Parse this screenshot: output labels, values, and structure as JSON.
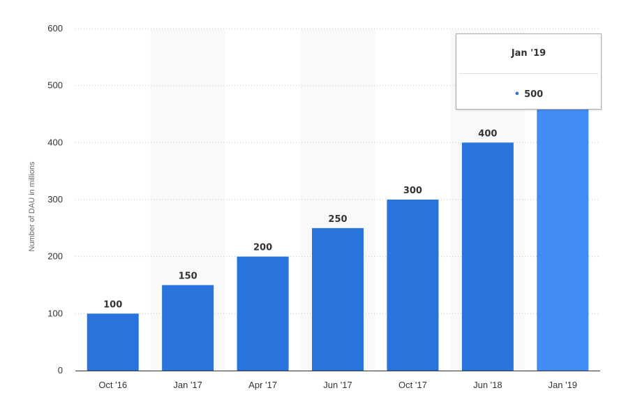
{
  "chart_data": {
    "type": "bar",
    "categories": [
      "Oct '16",
      "Jan '17",
      "Apr '17",
      "Jun '17",
      "Oct '17",
      "Jun '18",
      "Jan '19"
    ],
    "values": [
      100,
      150,
      200,
      250,
      300,
      400,
      500
    ],
    "title": "",
    "xlabel": "",
    "ylabel": "Number of DAU in millions",
    "ylim": [
      0,
      600
    ],
    "yticks": [
      0,
      100,
      200,
      300,
      400,
      500,
      600
    ],
    "grid": true,
    "bar_color": "#2873dc",
    "highlight_color": "#418cf5",
    "highlight_index": 6,
    "band_color": "#f9f9f9",
    "band_indices": [
      1,
      3,
      5
    ]
  },
  "tooltip": {
    "title": "Jan '19",
    "bullet": "•",
    "value": "500"
  }
}
